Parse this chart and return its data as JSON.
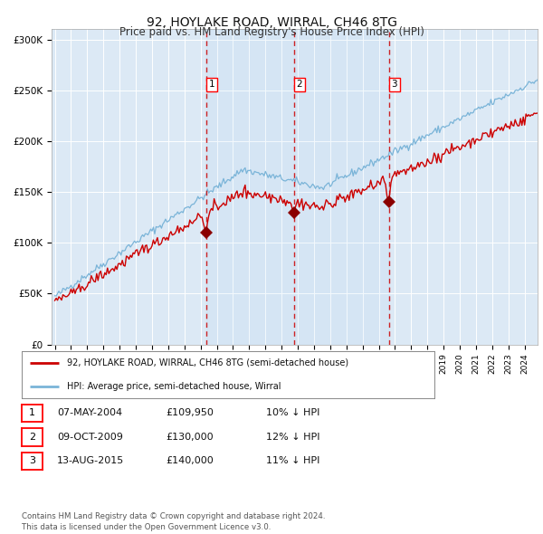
{
  "title": "92, HOYLAKE ROAD, WIRRAL, CH46 8TG",
  "subtitle": "Price paid vs. HM Land Registry's House Price Index (HPI)",
  "title_fontsize": 10,
  "subtitle_fontsize": 8.5,
  "background_color": "#ffffff",
  "plot_bg_color": "#dce9f5",
  "grid_color": "#ffffff",
  "hpi_line_color": "#7ab4d8",
  "price_line_color": "#cc0000",
  "marker_color": "#8b0000",
  "dashed_line_color": "#cc0000",
  "transactions": [
    {
      "label": "1",
      "date": "07-MAY-2004",
      "price": 109950,
      "price_str": "£109,950",
      "hpi_pct": "10% ↓ HPI",
      "year": 2004.37
    },
    {
      "label": "2",
      "date": "09-OCT-2009",
      "price": 130000,
      "price_str": "£130,000",
      "hpi_pct": "12% ↓ HPI",
      "year": 2009.77
    },
    {
      "label": "3",
      "date": "13-AUG-2015",
      "price": 140000,
      "price_str": "£140,000",
      "hpi_pct": "11% ↓ HPI",
      "year": 2015.62
    }
  ],
  "legend_entries": [
    "92, HOYLAKE ROAD, WIRRAL, CH46 8TG (semi-detached house)",
    "HPI: Average price, semi-detached house, Wirral"
  ],
  "footer": "Contains HM Land Registry data © Crown copyright and database right 2024.\nThis data is licensed under the Open Government Licence v3.0.",
  "ylim": [
    0,
    310000
  ],
  "yticks": [
    0,
    50000,
    100000,
    150000,
    200000,
    250000,
    300000
  ],
  "ytick_labels": [
    "£0",
    "£50K",
    "£100K",
    "£150K",
    "£200K",
    "£250K",
    "£300K"
  ],
  "xstart_year": 1995,
  "xend_year": 2024
}
